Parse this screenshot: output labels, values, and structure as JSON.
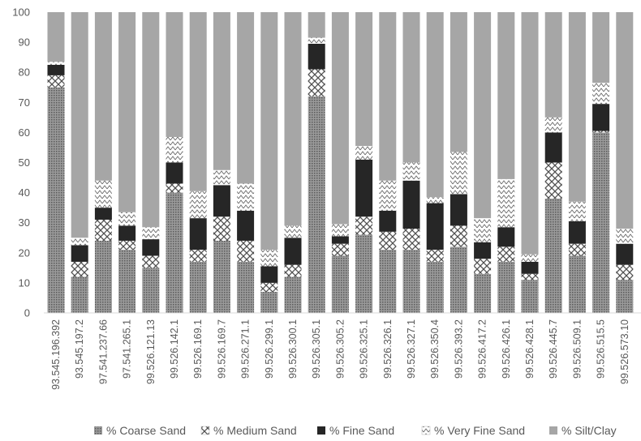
{
  "chart_data": {
    "type": "bar",
    "stacked": true,
    "title": "",
    "xlabel": "",
    "ylabel": "",
    "ylim": [
      0,
      100
    ],
    "yticks": [
      0,
      10,
      20,
      30,
      40,
      50,
      60,
      70,
      80,
      90,
      100
    ],
    "grid": false,
    "legend_position": "bottom",
    "categories": [
      "93.545.196.392",
      "93.545.197.2",
      "97.541.237.66",
      "97.541.265.1",
      "99.526.121.13",
      "99.526.142.1",
      "99.526.169.1",
      "99.526.169.7",
      "99.526.271.1",
      "99.526.299.1",
      "99.526.300.1",
      "99.526.305.1",
      "99.526.305.2",
      "99.526.325.1",
      "99.526.326.1",
      "99.526.327.1",
      "99.526.350.4",
      "99.526.393.2",
      "99.526.417.2",
      "99.526.426.1",
      "99.526.428.1",
      "99.526.445.7",
      "99.526.509.1",
      "99.526.515.5",
      "99.526.573.10"
    ],
    "series": [
      {
        "name": "% Coarse Sand",
        "color": "#8c8c8c",
        "pattern": "dots",
        "values": [
          75,
          12,
          24,
          21,
          15,
          40,
          17,
          24,
          17,
          7,
          12,
          72,
          19,
          26,
          21,
          21,
          17,
          22,
          13,
          17,
          11,
          38,
          19,
          60,
          11
        ]
      },
      {
        "name": "% Medium Sand",
        "color": "#ffffff",
        "pattern": "cross",
        "values": [
          4,
          5,
          7,
          3,
          4,
          3,
          4,
          8,
          7,
          3,
          4,
          9,
          4,
          6,
          6,
          7,
          4,
          7,
          5,
          5,
          2,
          12,
          4,
          0.5,
          5
        ]
      },
      {
        "name": "% Fine Sand",
        "color": "#262626",
        "pattern": "solid",
        "values": [
          3.5,
          5.5,
          4,
          5,
          5.5,
          7,
          10.5,
          10.5,
          10,
          5.5,
          9,
          8.5,
          2.5,
          19,
          7,
          16,
          15.5,
          10.5,
          5.5,
          6.5,
          4,
          10,
          7.5,
          9,
          7
        ]
      },
      {
        "name": "% Very Fine Sand",
        "color": "#ffffff",
        "pattern": "chevron",
        "values": [
          1,
          2.5,
          9,
          4.5,
          4,
          8.5,
          9,
          5,
          9,
          5.5,
          4,
          2,
          4,
          4.5,
          10,
          6,
          2,
          14,
          8,
          16,
          2.5,
          5,
          6.5,
          7,
          5
        ]
      },
      {
        "name": "% Silt/Clay",
        "color": "#a6a6a6",
        "pattern": "solid",
        "values": [
          16.5,
          75,
          56,
          66.5,
          71.5,
          41.5,
          59.5,
          52.5,
          57,
          79,
          71,
          8.5,
          70.5,
          44.5,
          56,
          50,
          61.5,
          46.5,
          68.5,
          55.5,
          80.5,
          35,
          63,
          23.5,
          72
        ]
      }
    ]
  }
}
